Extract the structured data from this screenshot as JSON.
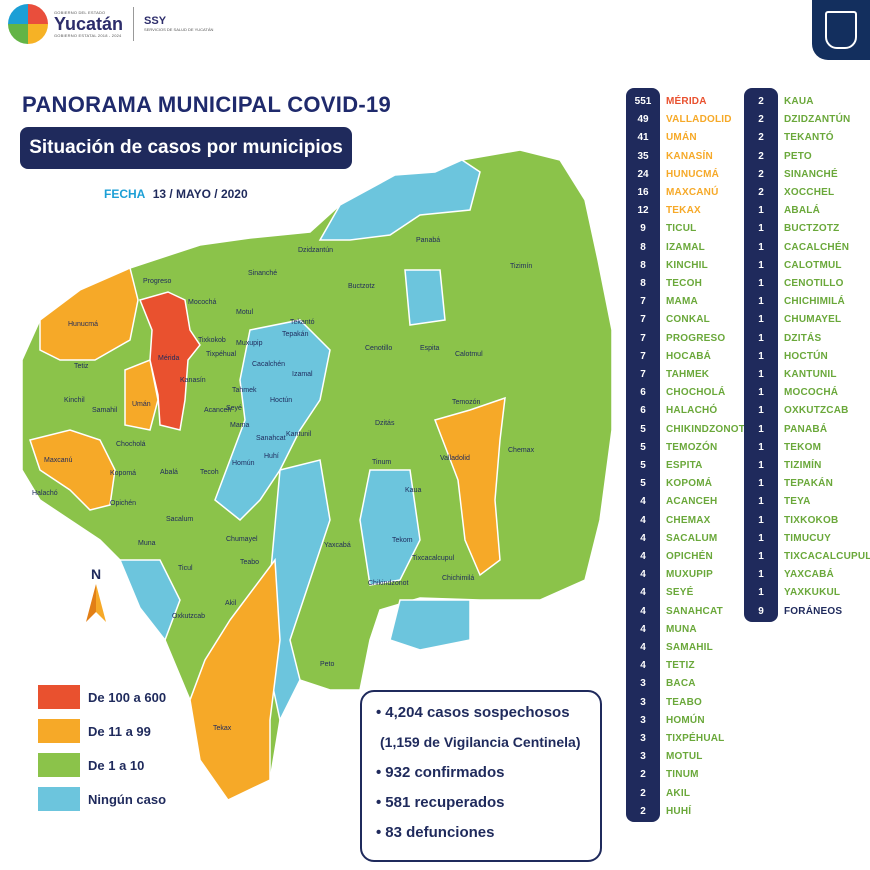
{
  "header": {
    "logo_small": "GOBIERNO DEL ESTADO",
    "logo_name": "Yucatán",
    "logo_sub": "GOBIERNO ESTATAL 2018 - 2024",
    "ssy": "SSY",
    "ssy_sub": "SERVICIOS DE SALUD DE YUCATÁN",
    "crest_icon": "crest-icon"
  },
  "title": "PANORAMA MUNICIPAL COVID-19",
  "subtitle": "Situación de casos por municipios",
  "fecha_label": "FECHA",
  "fecha_value": "13 / MAYO / 2020",
  "colors": {
    "high": "#e9512f",
    "mid": "#f6a928",
    "low": "#8bc34a",
    "none": "#6cc5dd",
    "navy": "#1f2a5c"
  },
  "legend": [
    {
      "label": "De 100 a 600",
      "color": "#e9512f"
    },
    {
      "label": "De 11 a 99",
      "color": "#f6a928"
    },
    {
      "label": "De 1 a 10",
      "color": "#8bc34a"
    },
    {
      "label": "Ningún caso",
      "color": "#6cc5dd"
    }
  ],
  "north_label": "N",
  "summary": [
    "4,204 casos sospechosos",
    "(1,159 de Vigilancia Centinela)",
    "932 confirmados",
    "581 recuperados",
    "83 defunciones"
  ],
  "map_labels": [
    "Dzidzantún",
    "Panabá",
    "Tizimín",
    "Progreso",
    "Sinanché",
    "Buctzotz",
    "Hunucmá",
    "Mocochá",
    "Motul",
    "Tekantó",
    "Tepakán",
    "Cenotillo",
    "Espita",
    "Calotmul",
    "Mérida",
    "Tixkokob",
    "Izamal",
    "Tetiz",
    "Kanasín",
    "Temozón",
    "Kinchil",
    "Samahil",
    "Umán",
    "Tahmek",
    "Hoctún",
    "Dzitás",
    "Maxcanú",
    "Chocholá",
    "Valladolid",
    "Chemax",
    "Halachó",
    "Kopomá",
    "Abalá",
    "Tecoh",
    "Homún",
    "Huhí",
    "Kantunil",
    "Tinum",
    "Kaua",
    "Opichén",
    "Sacalum",
    "Muna",
    "Yaxcabá",
    "Tekom",
    "Ticul",
    "Chumayel",
    "Teabo",
    "Tixcacalcupul",
    "Chikindzonot",
    "Chichimilá",
    "Akil",
    "Oxkutzcab",
    "Peto",
    "Tekax",
    "Acanceh",
    "Tixpéhual",
    "Seyé",
    "Cacalchén",
    "Muxupip",
    "Sanahcat",
    "Mama"
  ],
  "list_left": [
    {
      "n": "551",
      "name": "MÉRIDA",
      "level": "high"
    },
    {
      "n": "49",
      "name": "VALLADOLID",
      "level": "mid"
    },
    {
      "n": "41",
      "name": "UMÁN",
      "level": "mid"
    },
    {
      "n": "35",
      "name": "KANASÍN",
      "level": "mid"
    },
    {
      "n": "24",
      "name": "HUNUCMÁ",
      "level": "mid"
    },
    {
      "n": "16",
      "name": "MAXCANÚ",
      "level": "mid"
    },
    {
      "n": "12",
      "name": "TEKAX",
      "level": "mid"
    },
    {
      "n": "9",
      "name": "TICUL",
      "level": "low"
    },
    {
      "n": "8",
      "name": "IZAMAL",
      "level": "low"
    },
    {
      "n": "8",
      "name": "KINCHIL",
      "level": "low"
    },
    {
      "n": "8",
      "name": "TECOH",
      "level": "low"
    },
    {
      "n": "7",
      "name": "MAMA",
      "level": "low"
    },
    {
      "n": "7",
      "name": "CONKAL",
      "level": "low"
    },
    {
      "n": "7",
      "name": "PROGRESO",
      "level": "low"
    },
    {
      "n": "7",
      "name": "HOCABÁ",
      "level": "low"
    },
    {
      "n": "7",
      "name": "TAHMEK",
      "level": "low"
    },
    {
      "n": "6",
      "name": "CHOCHOLÁ",
      "level": "low"
    },
    {
      "n": "6",
      "name": "HALACHÓ",
      "level": "low"
    },
    {
      "n": "5",
      "name": "CHIKINDZONOT",
      "level": "low"
    },
    {
      "n": "5",
      "name": "TEMOZÓN",
      "level": "low"
    },
    {
      "n": "5",
      "name": "ESPITA",
      "level": "low"
    },
    {
      "n": "5",
      "name": "KOPOMÁ",
      "level": "low"
    },
    {
      "n": "4",
      "name": "ACANCEH",
      "level": "low"
    },
    {
      "n": "4",
      "name": "CHEMAX",
      "level": "low"
    },
    {
      "n": "4",
      "name": "SACALUM",
      "level": "low"
    },
    {
      "n": "4",
      "name": "OPICHÉN",
      "level": "low"
    },
    {
      "n": "4",
      "name": "MUXUPIP",
      "level": "low"
    },
    {
      "n": "4",
      "name": "SEYÉ",
      "level": "low"
    },
    {
      "n": "4",
      "name": "SANAHCAT",
      "level": "low"
    },
    {
      "n": "4",
      "name": "MUNA",
      "level": "low"
    },
    {
      "n": "4",
      "name": "SAMAHIL",
      "level": "low"
    },
    {
      "n": "4",
      "name": "TETIZ",
      "level": "low"
    },
    {
      "n": "3",
      "name": "BACA",
      "level": "low"
    },
    {
      "n": "3",
      "name": "TEABO",
      "level": "low"
    },
    {
      "n": "3",
      "name": "HOMÚN",
      "level": "low"
    },
    {
      "n": "3",
      "name": "TIXPÉHUAL",
      "level": "low"
    },
    {
      "n": "3",
      "name": "MOTUL",
      "level": "low"
    },
    {
      "n": "2",
      "name": "TINUM",
      "level": "low"
    },
    {
      "n": "2",
      "name": "AKIL",
      "level": "low"
    },
    {
      "n": "2",
      "name": "HUHÍ",
      "level": "low"
    }
  ],
  "list_right": [
    {
      "n": "2",
      "name": "KAUA",
      "level": "low"
    },
    {
      "n": "2",
      "name": "DZIDZANTÚN",
      "level": "low"
    },
    {
      "n": "2",
      "name": "TEKANTÓ",
      "level": "low"
    },
    {
      "n": "2",
      "name": "PETO",
      "level": "low"
    },
    {
      "n": "2",
      "name": "SINANCHÉ",
      "level": "low"
    },
    {
      "n": "2",
      "name": "XOCCHEL",
      "level": "low"
    },
    {
      "n": "1",
      "name": "ABALÁ",
      "level": "low"
    },
    {
      "n": "1",
      "name": "BUCTZOTZ",
      "level": "low"
    },
    {
      "n": "1",
      "name": "CACALCHÉN",
      "level": "low"
    },
    {
      "n": "1",
      "name": "CALOTMUL",
      "level": "low"
    },
    {
      "n": "1",
      "name": "CENOTILLO",
      "level": "low"
    },
    {
      "n": "1",
      "name": "CHICHIMILÁ",
      "level": "low"
    },
    {
      "n": "1",
      "name": "CHUMAYEL",
      "level": "low"
    },
    {
      "n": "1",
      "name": "DZITÁS",
      "level": "low"
    },
    {
      "n": "1",
      "name": "HOCTÚN",
      "level": "low"
    },
    {
      "n": "1",
      "name": "KANTUNIL",
      "level": "low"
    },
    {
      "n": "1",
      "name": "MOCOCHÁ",
      "level": "low"
    },
    {
      "n": "1",
      "name": "OXKUTZCAB",
      "level": "low"
    },
    {
      "n": "1",
      "name": "PANABÁ",
      "level": "low"
    },
    {
      "n": "1",
      "name": "TEKOM",
      "level": "low"
    },
    {
      "n": "1",
      "name": "TIZIMÍN",
      "level": "low"
    },
    {
      "n": "1",
      "name": "TEPAKÁN",
      "level": "low"
    },
    {
      "n": "1",
      "name": "TEYA",
      "level": "low"
    },
    {
      "n": "1",
      "name": "TIXKOKOB",
      "level": "low"
    },
    {
      "n": "1",
      "name": "TIMUCUY",
      "level": "low"
    },
    {
      "n": "1",
      "name": "TIXCACALCUPUL",
      "level": "low"
    },
    {
      "n": "1",
      "name": "YAXCABÁ",
      "level": "low"
    },
    {
      "n": "1",
      "name": "YAXKUKUL",
      "level": "low"
    },
    {
      "n": "9",
      "name": "FORÁNEOS",
      "level": "navy"
    }
  ]
}
